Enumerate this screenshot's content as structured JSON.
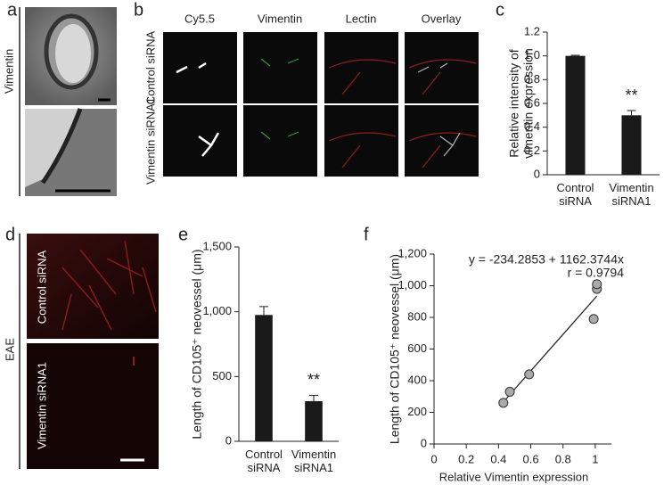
{
  "panels": {
    "a": "a",
    "b": "b",
    "c": "c",
    "d": "d",
    "e": "e",
    "f": "f"
  },
  "panel_a": {
    "label": "Vimentin"
  },
  "panel_b": {
    "columns": [
      "Cy5.5",
      "Vimentin",
      "Lectin",
      "Overlay"
    ],
    "rows": [
      "Control siRNA",
      "Vimentin siRNA1"
    ]
  },
  "panel_d": {
    "label": "EAE",
    "rows": [
      "Control siRNA",
      "Vimentin siRNA1"
    ]
  },
  "chart_data": [
    {
      "type": "bar",
      "ylabel": [
        "Relative intensity of",
        "vimentin expression"
      ],
      "categories": [
        "Control siRNA",
        "Vimentin siRNA1"
      ],
      "values": [
        1.0,
        0.5
      ],
      "errors": [
        0.005,
        0.04
      ],
      "annotations": [
        null,
        "**"
      ],
      "color": "#1a1a1a",
      "ylim": [
        0,
        1.2
      ],
      "yticks": [
        {
          "value": 0,
          "label": "0"
        },
        0.2,
        0.4,
        0.6,
        0.8,
        {
          "value": 1,
          "label": "1.0"
        },
        1.2
      ]
    },
    {
      "type": "bar",
      "ylabel": [
        "Length of CD105⁺ neovessel (μm)"
      ],
      "categories": [
        "Control siRNA",
        "Vimentin siRNA1"
      ],
      "values": [
        975,
        310
      ],
      "errors": [
        65,
        45
      ],
      "annotations": [
        null,
        "**"
      ],
      "color": "#1a1a1a",
      "ylim": [
        0,
        1500
      ],
      "yticks": [
        0,
        500,
        {
          "value": 1000,
          "label": "1,000"
        },
        {
          "value": 1500,
          "label": "1,500"
        }
      ]
    },
    {
      "type": "scatter",
      "ylabel": [
        "Length of CD105⁺ neovessel (μm)"
      ],
      "xlabel": "Relative Vimentin expression",
      "annotations": [
        "y = -234.2853 + 1162.3744x",
        "r = 0.9794"
      ],
      "color": "#aaaaaa",
      "x": [
        0.43,
        0.47,
        0.59,
        0.99,
        1.01,
        1.01
      ],
      "values": [
        260,
        330,
        440,
        790,
        980,
        1010
      ],
      "xlim": [
        0,
        1.1
      ],
      "xticks": [
        0,
        0.2,
        0.4,
        0.6,
        0.8,
        1
      ],
      "ylim": [
        0,
        1200
      ],
      "yticks": [
        0,
        200,
        400,
        600,
        800,
        {
          "value": 1000,
          "label": "1,000"
        },
        {
          "value": 1200,
          "label": "1,200"
        }
      ]
    }
  ]
}
